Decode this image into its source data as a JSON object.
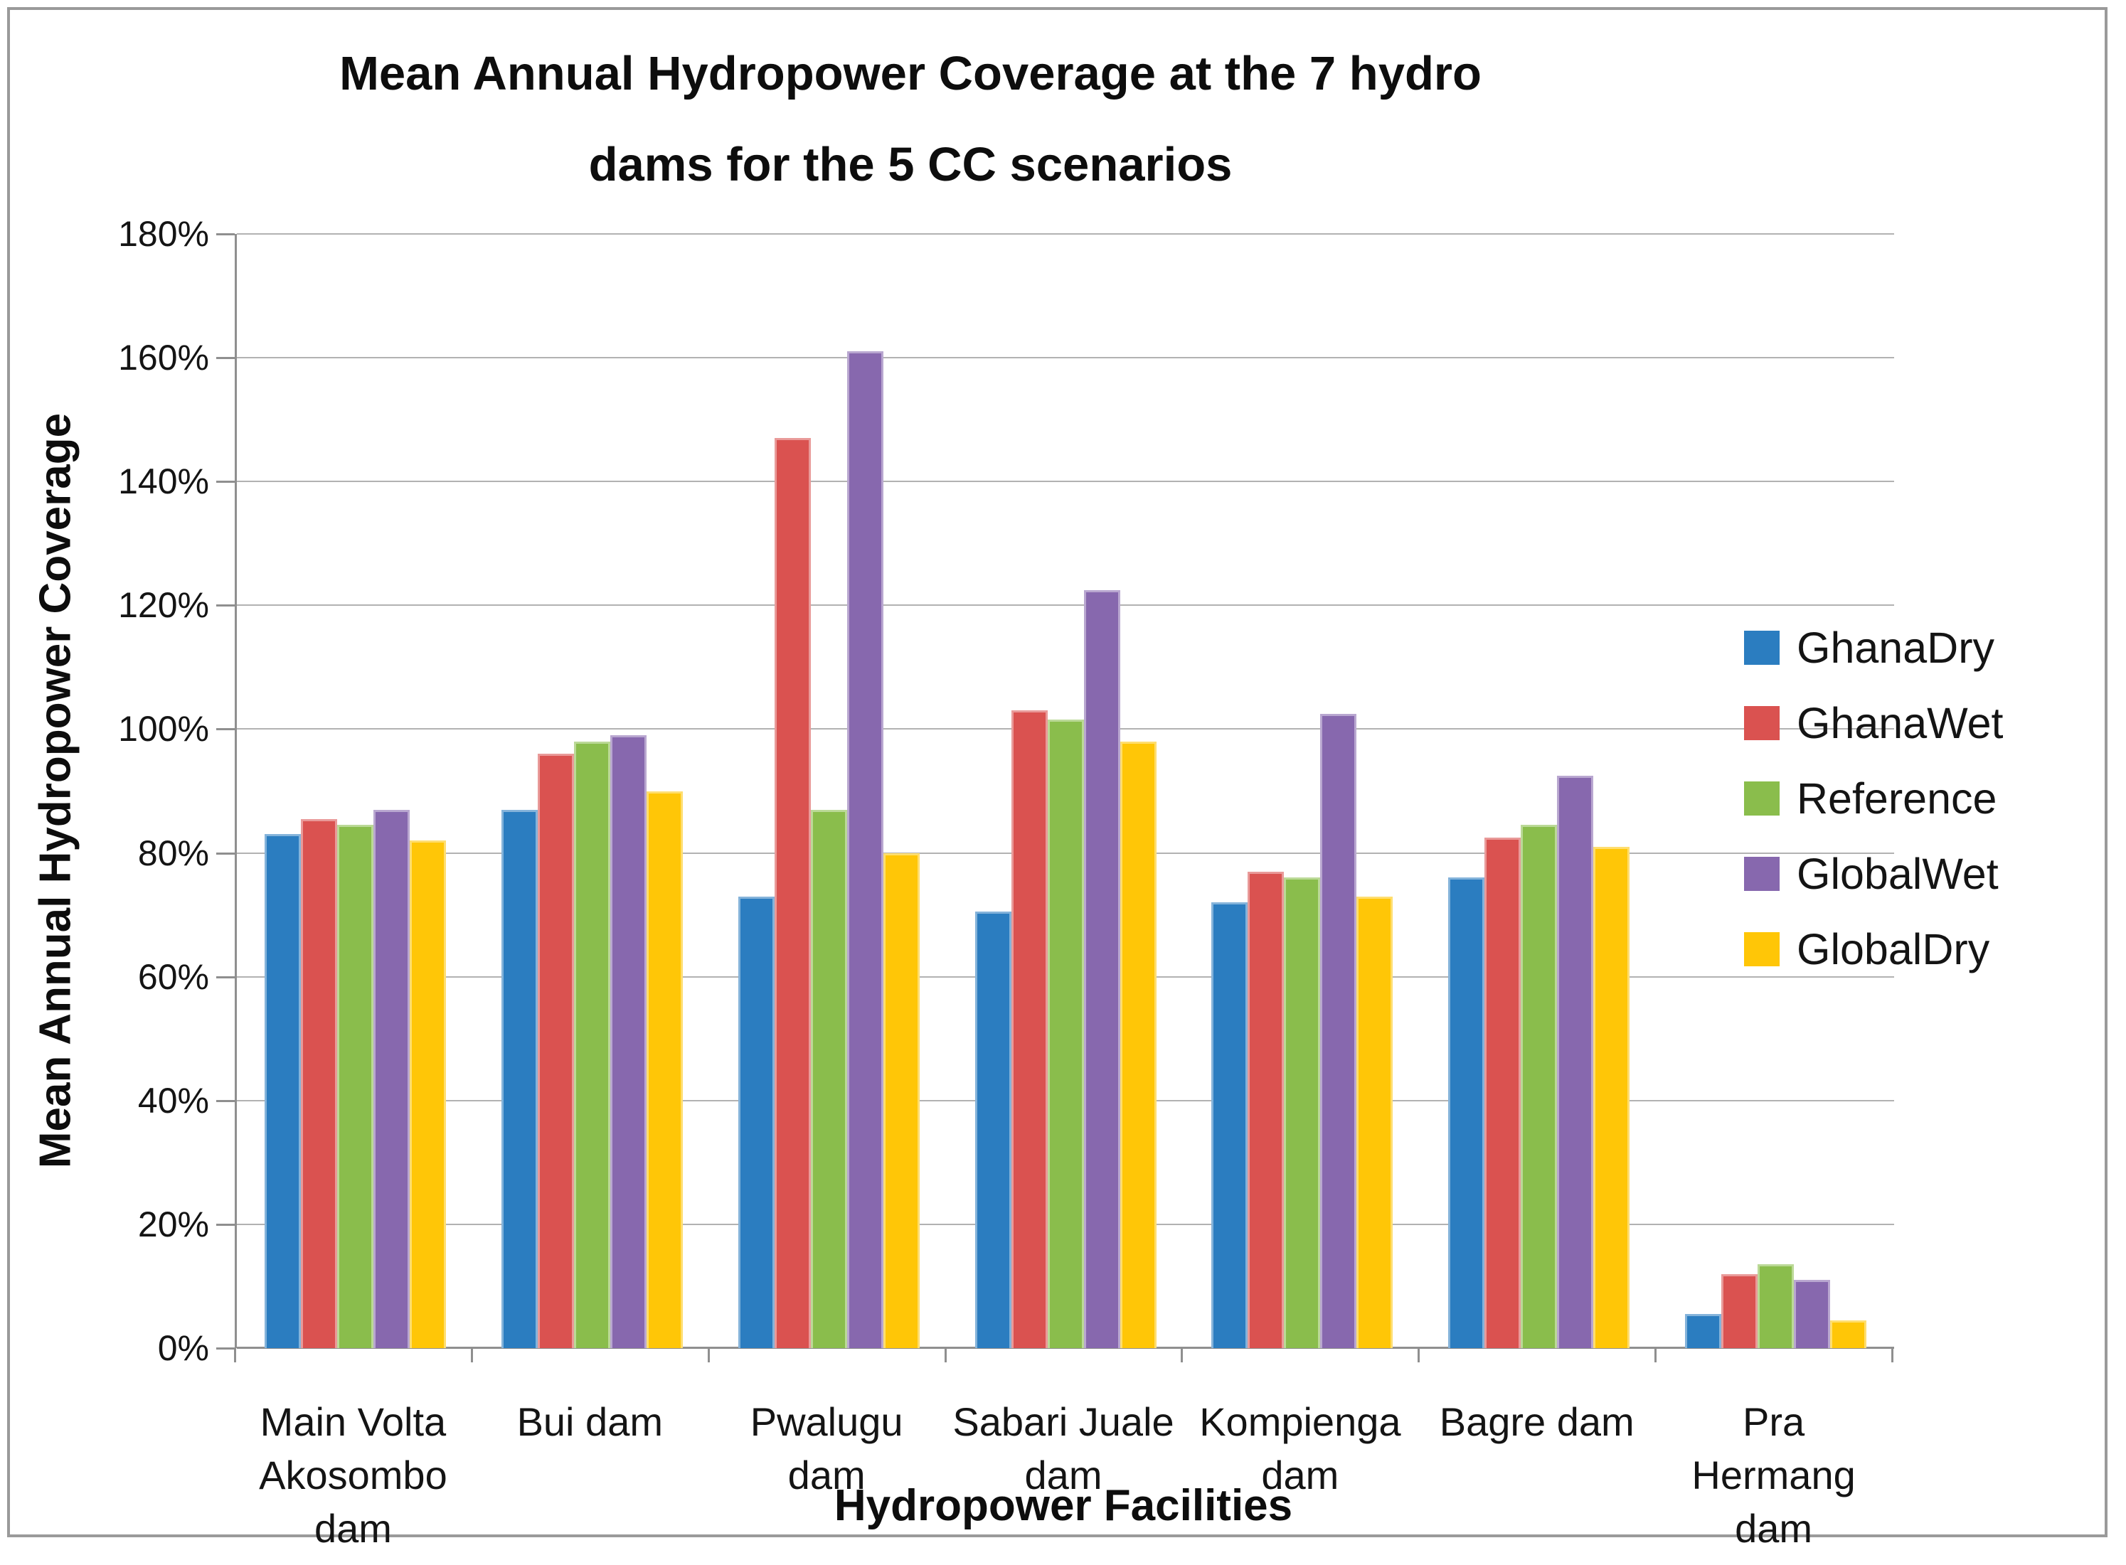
{
  "title": {
    "line1": "Mean Annual Hydropower Coverage at the 7 hydro",
    "line2": "dams for the 5 CC scenarios"
  },
  "y_axis": {
    "title": "Mean Annual Hydropower Coverage",
    "tick_labels": [
      "0%",
      "20%",
      "40%",
      "60%",
      "80%",
      "100%",
      "120%",
      "140%",
      "160%",
      "180%"
    ]
  },
  "x_axis": {
    "title": "Hydropower Facilities"
  },
  "legend": {
    "entries": [
      "GhanaDry",
      "GhanaWet",
      "Reference",
      "GlobalWet",
      "GlobalDry"
    ]
  },
  "colors": {
    "grid": "#b2b2b2",
    "axis": "#8f8f8f",
    "frame": "#9a9a9a"
  },
  "chart_data": {
    "type": "bar",
    "title": "Mean Annual Hydropower Coverage at the 7 hydro dams for the 5 CC scenarios",
    "xlabel": "Hydropower Facilities",
    "ylabel": "Mean Annual Hydropower Coverage",
    "ylim": [
      0,
      180
    ],
    "y_tick_step": 20,
    "y_unit": "%",
    "grid": true,
    "legend_position": "right",
    "categories": [
      "Main Volta Akosombo dam",
      "Bui dam",
      "Pwalugu dam",
      "Sabari Juale dam",
      "Kompienga dam",
      "Bagre dam",
      "Pra Hermang dam"
    ],
    "category_lines": [
      [
        "Main Volta",
        "Akosombo",
        "dam"
      ],
      [
        "Bui dam"
      ],
      [
        "Pwalugu",
        "dam"
      ],
      [
        "Sabari Juale",
        "dam"
      ],
      [
        "Kompienga",
        "dam"
      ],
      [
        "Bagre dam"
      ],
      [
        "Pra Hermang",
        "dam"
      ]
    ],
    "series": [
      {
        "name": "GhanaDry",
        "color": "#2B7DC0",
        "values": [
          83,
          87,
          73,
          70.5,
          72,
          76,
          5.5
        ]
      },
      {
        "name": "GhanaWet",
        "color": "#DA5250",
        "values": [
          85.5,
          96,
          147,
          103,
          77,
          82.5,
          12
        ]
      },
      {
        "name": "Reference",
        "color": "#8ABD4C",
        "values": [
          84.5,
          98,
          87,
          101.5,
          76,
          84.5,
          13.5
        ]
      },
      {
        "name": "GlobalWet",
        "color": "#8768AE",
        "values": [
          87,
          99,
          161,
          122.5,
          102.5,
          92.5,
          11
        ]
      },
      {
        "name": "GlobalDry",
        "color": "#FFC607",
        "values": [
          82,
          90,
          80,
          98,
          73,
          81,
          4.5
        ]
      }
    ]
  }
}
